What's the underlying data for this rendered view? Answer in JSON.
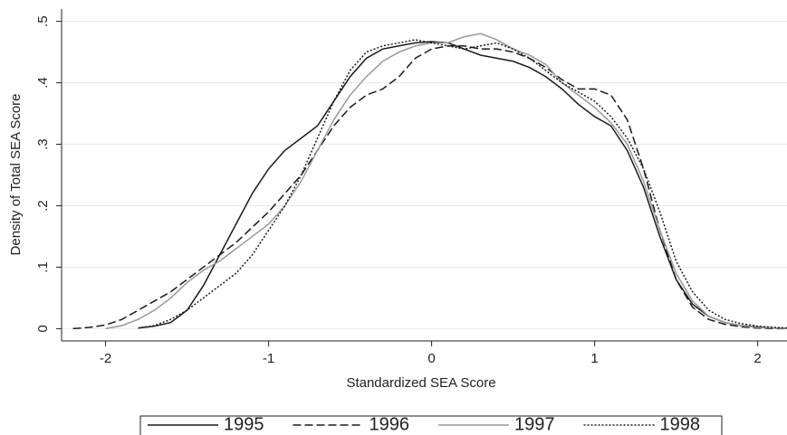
{
  "chart_data": {
    "type": "line",
    "xlabel": "Standardized SEA Score",
    "ylabel": "Density of Total SEA Score",
    "x": [
      -2.2,
      -2.1,
      -2.0,
      -1.9,
      -1.8,
      -1.7,
      -1.6,
      -1.5,
      -1.4,
      -1.3,
      -1.2,
      -1.1,
      -1.0,
      -0.9,
      -0.8,
      -0.7,
      -0.6,
      -0.5,
      -0.4,
      -0.3,
      -0.2,
      -0.1,
      0,
      0.1,
      0.2,
      0.3,
      0.4,
      0.5,
      0.6,
      0.7,
      0.8,
      0.9,
      1.0,
      1.1,
      1.2,
      1.3,
      1.4,
      1.5,
      1.6,
      1.7,
      1.8,
      1.9,
      2.0,
      2.1,
      2.2
    ],
    "series": [
      {
        "name": "1995",
        "color": "#1a1a1a",
        "dash": "solid",
        "values": [
          null,
          null,
          null,
          null,
          0.001,
          0.004,
          0.01,
          0.03,
          0.07,
          0.12,
          0.17,
          0.22,
          0.26,
          0.29,
          0.31,
          0.33,
          0.37,
          0.41,
          0.44,
          0.455,
          0.46,
          0.465,
          0.467,
          0.465,
          0.455,
          0.445,
          0.44,
          0.435,
          0.425,
          0.41,
          0.39,
          0.365,
          0.345,
          0.33,
          0.29,
          0.23,
          0.15,
          0.08,
          0.04,
          0.02,
          0.01,
          0.005,
          0.003,
          0.001,
          0
        ]
      },
      {
        "name": "1996",
        "color": "#1a1a1a",
        "dash": "dashed",
        "values": [
          0,
          0.002,
          0.006,
          0.015,
          0.03,
          0.045,
          0.06,
          0.08,
          0.1,
          0.12,
          0.14,
          0.165,
          0.19,
          0.22,
          0.25,
          0.29,
          0.33,
          0.36,
          0.38,
          0.39,
          0.41,
          0.44,
          0.455,
          0.46,
          0.46,
          0.455,
          0.455,
          0.45,
          0.44,
          0.425,
          0.405,
          0.39,
          0.39,
          0.38,
          0.34,
          0.26,
          0.16,
          0.08,
          0.035,
          0.015,
          0.007,
          0.003,
          0.001,
          0,
          0
        ]
      },
      {
        "name": "1997",
        "color": "#999999",
        "dash": "solid",
        "values": [
          null,
          null,
          0,
          0.005,
          0.015,
          0.03,
          0.05,
          0.075,
          0.095,
          0.11,
          0.13,
          0.15,
          0.17,
          0.2,
          0.24,
          0.29,
          0.34,
          0.38,
          0.41,
          0.435,
          0.45,
          0.46,
          0.465,
          0.465,
          0.475,
          0.48,
          0.47,
          0.455,
          0.445,
          0.43,
          0.4,
          0.38,
          0.36,
          0.335,
          0.3,
          0.24,
          0.16,
          0.09,
          0.045,
          0.02,
          0.01,
          0.005,
          0.002,
          0.001,
          0
        ]
      },
      {
        "name": "1998",
        "color": "#1a1a1a",
        "dash": "dotted",
        "values": [
          null,
          null,
          null,
          null,
          0.001,
          0.005,
          0.015,
          0.03,
          0.05,
          0.07,
          0.09,
          0.12,
          0.16,
          0.2,
          0.25,
          0.31,
          0.37,
          0.42,
          0.45,
          0.46,
          0.465,
          0.47,
          0.465,
          0.46,
          0.455,
          0.46,
          0.465,
          0.455,
          0.44,
          0.42,
          0.4,
          0.385,
          0.37,
          0.345,
          0.31,
          0.26,
          0.19,
          0.11,
          0.06,
          0.03,
          0.015,
          0.008,
          0.004,
          0.002,
          0.001
        ]
      }
    ],
    "xlim": [
      -2.27,
      2.18
    ],
    "ylim": [
      -0.02,
      0.52
    ],
    "xticks": [
      -2,
      -1,
      0,
      1,
      2
    ],
    "yticks": [
      0,
      {
        "value": 0.1,
        "label": ".1"
      },
      {
        "value": 0.2,
        "label": ".2"
      },
      {
        "value": 0.3,
        "label": ".3"
      },
      {
        "value": 0.4,
        "label": ".4"
      },
      {
        "value": 0.5,
        "label": ".5"
      }
    ],
    "grid": true,
    "legend": "bottom"
  }
}
